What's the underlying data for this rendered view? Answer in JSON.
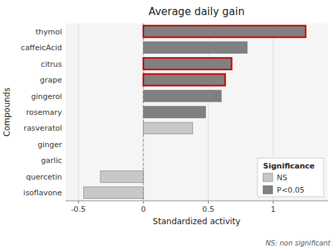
{
  "chart_data": {
    "type": "bar",
    "orientation": "horizontal",
    "title": "Average daily gain",
    "x_label": "Standardized activity",
    "y_label": "Compounds",
    "categories": [
      "isoflavone",
      "quercetin",
      "garlic",
      "ginger",
      "rasveratol",
      "rosemary",
      "gingerol",
      "grape",
      "citrus",
      "caffeicAcid",
      "thymol"
    ],
    "series": [
      {
        "name": "NS",
        "color": "#c8c8c8",
        "values": [
          -0.46,
          -0.33,
          0.0,
          0.0,
          0.38,
          null,
          null,
          null,
          null,
          null,
          null
        ]
      },
      {
        "name": "P<0.05",
        "color": "#808080",
        "values": [
          null,
          null,
          null,
          null,
          null,
          0.48,
          0.6,
          0.63,
          0.68,
          0.8,
          1.25
        ]
      }
    ],
    "highlight": [
      "thymol",
      "citrus",
      "grape"
    ],
    "highlight_color": "#cc0000",
    "xlim": [
      -0.6,
      1.42
    ],
    "xticks": [
      -0.5,
      0.0,
      0.5,
      1.0
    ],
    "grid": true,
    "legend": "lower right",
    "legend_title": "Significance",
    "note": "NS: non significant"
  }
}
